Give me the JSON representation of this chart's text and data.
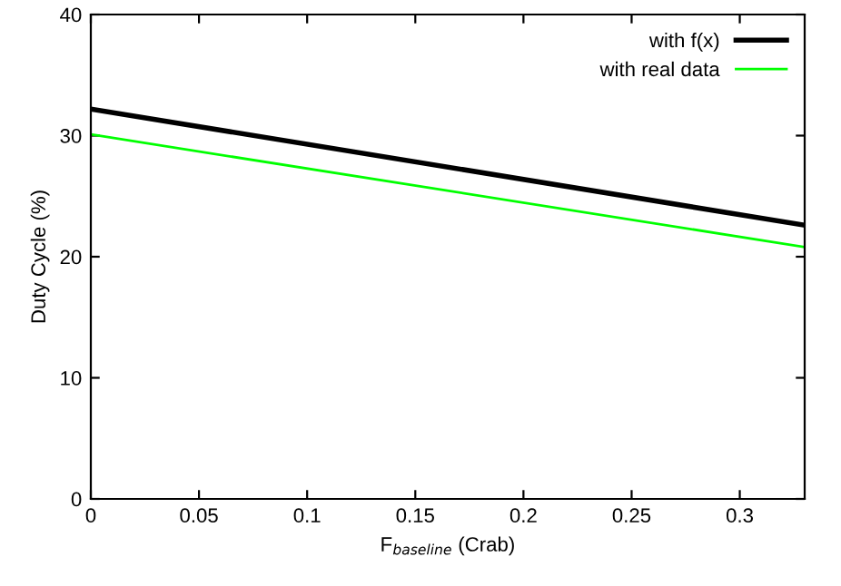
{
  "chart_data": {
    "type": "line",
    "xlabel": "F$_{baseline}$ (Crab)",
    "ylabel": "Duty Cycle (%)",
    "x": [
      0,
      0.33
    ],
    "series": [
      {
        "name": "with f(x)",
        "color": "#000000",
        "values": [
          32.2,
          22.6
        ]
      },
      {
        "name": "with real data",
        "color": "#00ff00",
        "values": [
          30.1,
          20.8
        ]
      }
    ],
    "xlim": [
      0,
      0.33
    ],
    "xticks": [
      0,
      0.05,
      0.1,
      0.15,
      0.2,
      0.25,
      0.3
    ],
    "ylim": [
      0,
      40
    ],
    "yticks": [
      0,
      10,
      20,
      30,
      40
    ],
    "grid": false,
    "legend": "top right",
    "marker": "none",
    "line_style": "solid"
  }
}
